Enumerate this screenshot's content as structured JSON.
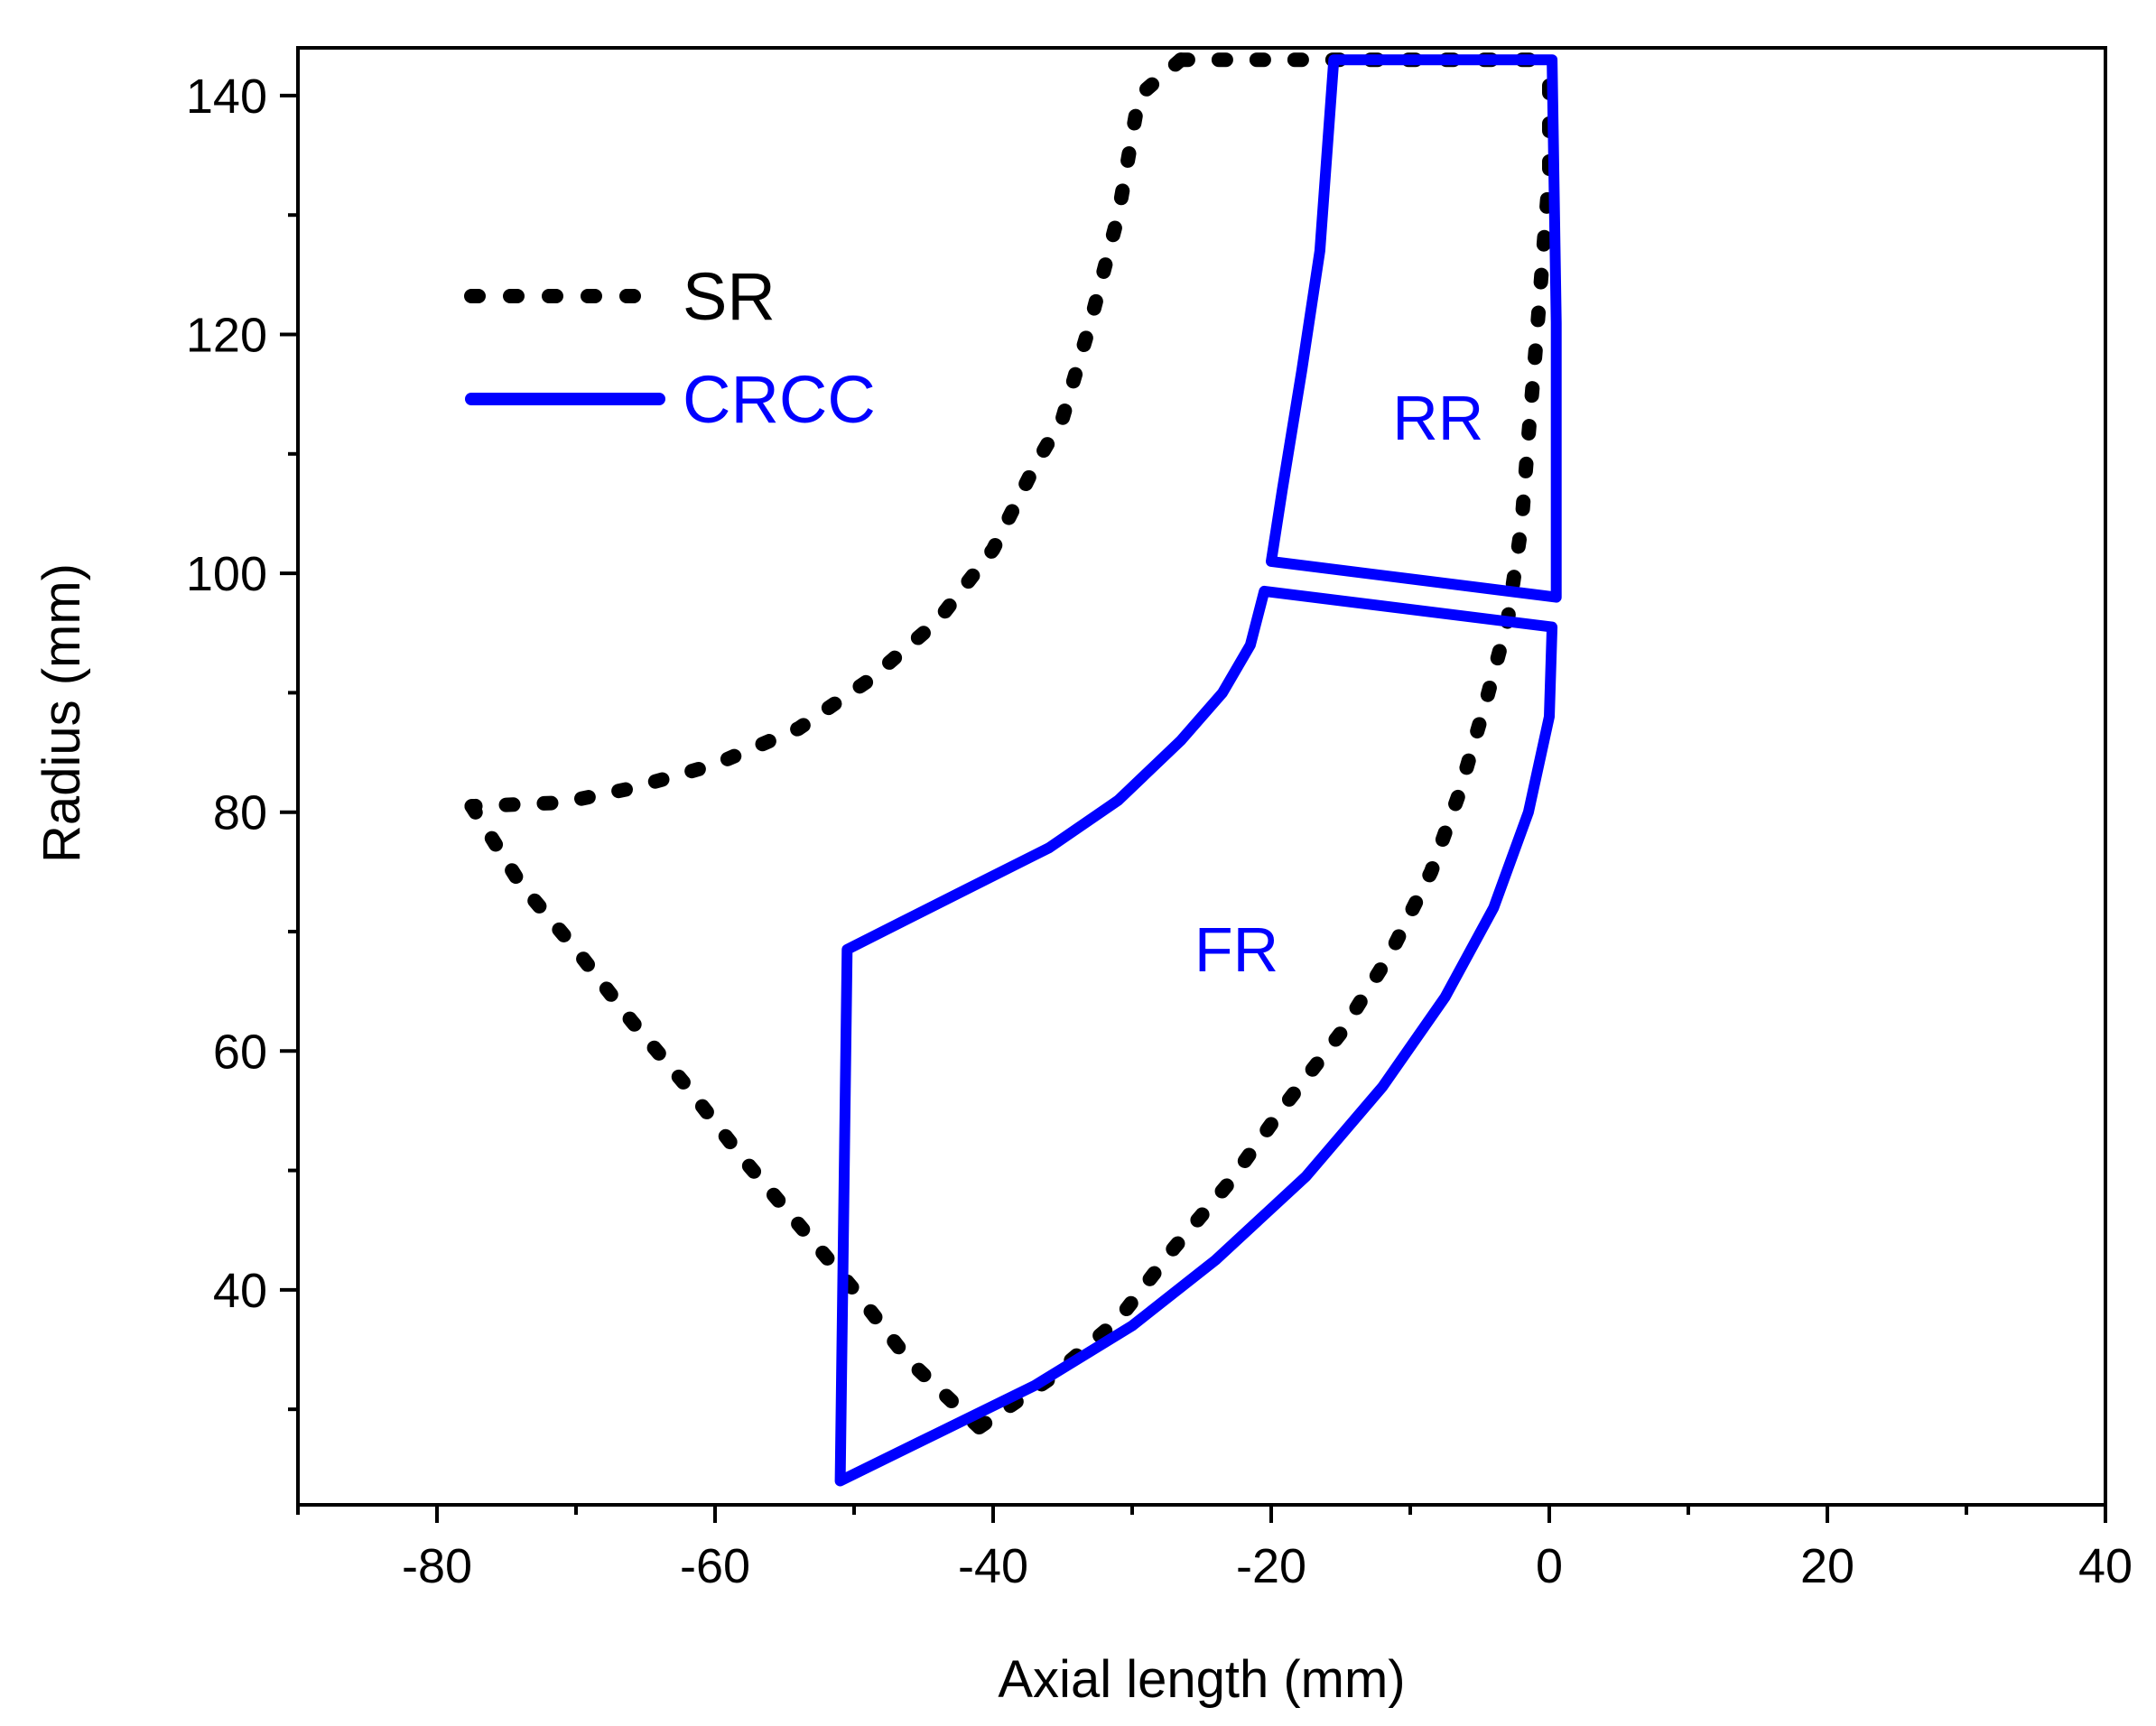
{
  "chart_data": {
    "type": "line",
    "title": "",
    "xlabel": "Axial length (mm)",
    "ylabel": "Radius (mm)",
    "xlim": [
      -90,
      40
    ],
    "ylim": [
      22,
      144
    ],
    "x_ticks": [
      -80,
      -60,
      -40,
      -20,
      0,
      20,
      40
    ],
    "x_tick_labels": [
      "-80",
      "-60",
      "-40",
      "-20",
      "0",
      "20",
      "40"
    ],
    "y_ticks": [
      40,
      60,
      80,
      100,
      120,
      140
    ],
    "y_tick_labels": [
      "40",
      "60",
      "80",
      "100",
      "120",
      "140"
    ],
    "x_minor_ticks": [
      -90,
      -70,
      -50,
      -30,
      -10,
      10,
      30
    ],
    "y_minor_ticks": [
      30,
      50,
      70,
      90,
      110,
      130
    ],
    "grid": false,
    "legend_position": "upper-left",
    "series": [
      {
        "name": "SR",
        "style": "dotted",
        "color": "#000000",
        "segments": [
          [
            [
              -26.5,
              143
            ],
            [
              -19.5,
              143
            ],
            [
              -13,
              143
            ],
            [
              -6.5,
              143
            ],
            [
              0,
              143
            ]
          ],
          [
            [
              -26.5,
              143
            ],
            [
              -29.5,
              140
            ],
            [
              -31,
              130
            ],
            [
              -33,
              121
            ],
            [
              -35,
              113
            ],
            [
              -37,
              109
            ],
            [
              -40,
              102
            ],
            [
              -44,
              96
            ],
            [
              -49,
              91
            ],
            [
              -54,
              87
            ],
            [
              -60,
              84
            ],
            [
              -66,
              82
            ],
            [
              -71,
              80.8
            ],
            [
              -77.5,
              80.5
            ]
          ],
          [
            [
              -77.5,
              80.5
            ],
            [
              -74,
              74
            ],
            [
              -70,
              68.5
            ],
            [
              -66,
              62.5
            ],
            [
              -62,
              57
            ],
            [
              -58,
              51
            ],
            [
              -54,
              45.5
            ],
            [
              -50,
              40
            ],
            [
              -46,
              34
            ],
            [
              -41,
              28.5
            ]
          ],
          [
            [
              -41,
              28.5
            ],
            [
              -36,
              32.5
            ],
            [
              -31,
              37.5
            ],
            [
              -27,
              43.5
            ],
            [
              -23,
              49
            ],
            [
              -19,
              55.5
            ],
            [
              -15,
              61.5
            ],
            [
              -11.5,
              68
            ],
            [
              -8.5,
              75
            ],
            [
              -6.5,
              81.5
            ],
            [
              -4.5,
              89.5
            ],
            [
              -3,
              96
            ],
            [
              -2,
              104
            ],
            [
              -1.5,
              111.5
            ],
            [
              -1,
              118.5
            ],
            [
              -0.5,
              126
            ],
            [
              0,
              133.5
            ],
            [
              0,
              143
            ]
          ]
        ]
      },
      {
        "name": "CRCC",
        "style": "solid",
        "color": "#0000ff",
        "segments": [
          [
            [
              -15.5,
              143
            ],
            [
              0.2,
              143
            ],
            [
              0.5,
              121
            ],
            [
              0.5,
              98
            ],
            [
              -20,
              101
            ],
            [
              -19.2,
              107
            ],
            [
              -17.8,
              117
            ],
            [
              -16.5,
              127
            ],
            [
              -15.5,
              143
            ]
          ],
          [
            [
              -51,
              24
            ],
            [
              -44,
              28
            ],
            [
              -37,
              32
            ],
            [
              -30,
              37
            ],
            [
              -24,
              42.5
            ],
            [
              -17.5,
              49.5
            ],
            [
              -12,
              57
            ],
            [
              -7.5,
              64.5
            ],
            [
              -4,
              72
            ],
            [
              -1.5,
              80
            ],
            [
              0,
              88
            ],
            [
              0.2,
              95.5
            ],
            [
              -20.5,
              98.5
            ],
            [
              -21.5,
              94
            ],
            [
              -23.5,
              90
            ],
            [
              -26.5,
              86
            ],
            [
              -31,
              81
            ],
            [
              -36,
              77
            ],
            [
              -42,
              73.5
            ],
            [
              -50.5,
              68.5
            ],
            [
              -51,
              24
            ]
          ]
        ]
      }
    ],
    "annotations": [
      {
        "text": "RR",
        "x": -8,
        "y": 113,
        "color": "#0000ff"
      },
      {
        "text": "FR",
        "x": -22.5,
        "y": 68.5,
        "color": "#0000ff"
      }
    ],
    "legend": [
      {
        "label": "SR",
        "color": "#000000",
        "style": "dotted"
      },
      {
        "label": "CRCC",
        "color": "#0000ff",
        "style": "solid"
      }
    ]
  }
}
